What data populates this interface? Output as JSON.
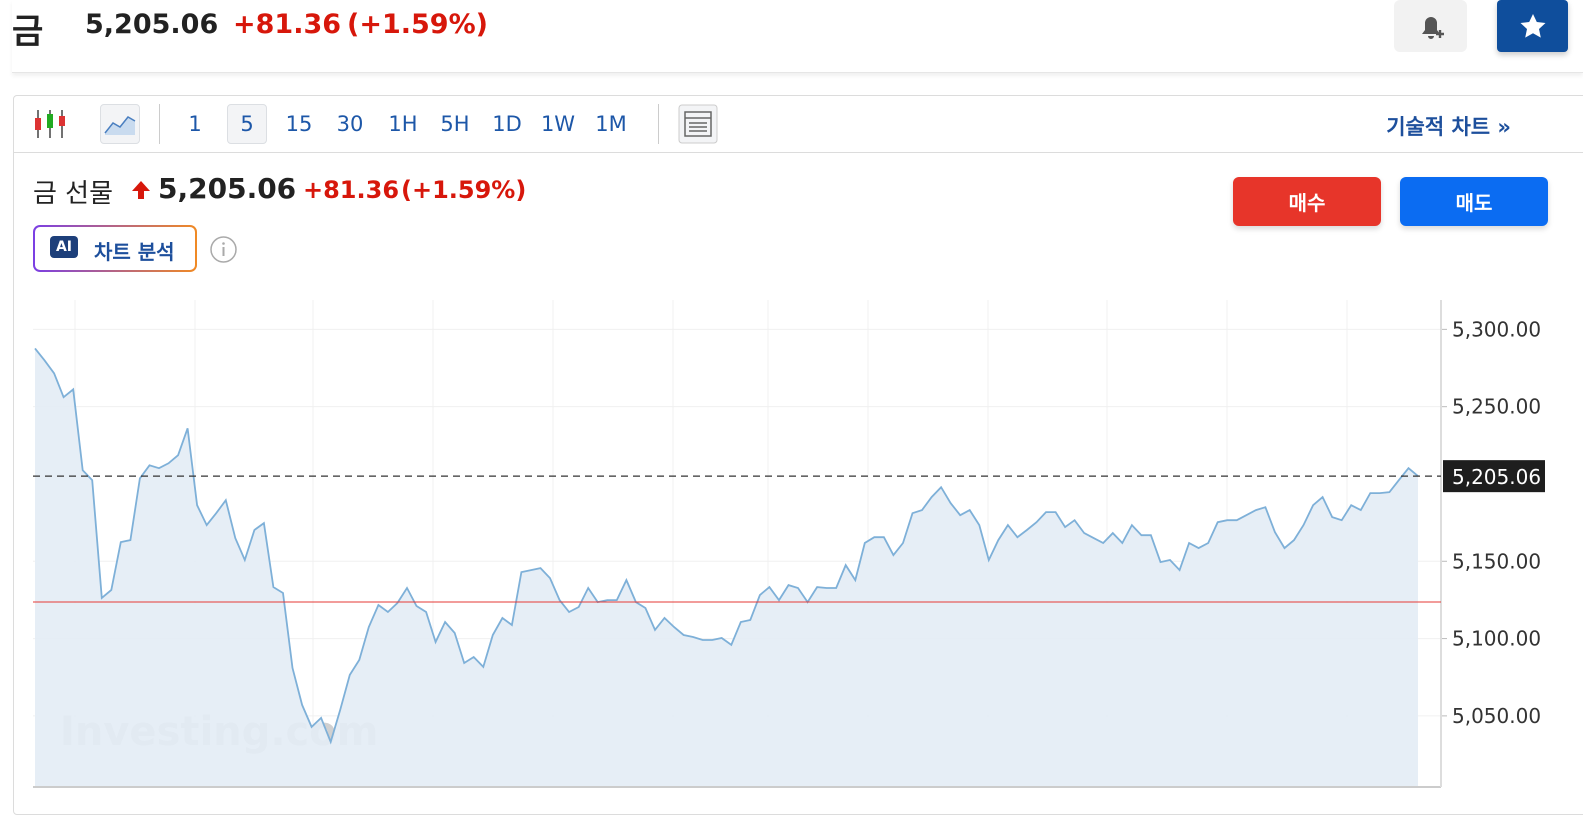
{
  "header": {
    "title": "금",
    "price": "5,205.06",
    "change": "+81.36",
    "change_pct": "(+1.59%)"
  },
  "toolbar": {
    "intervals": [
      {
        "label": "1"
      },
      {
        "label": "5",
        "active": true
      },
      {
        "label": "15"
      },
      {
        "label": "30"
      },
      {
        "label": "1H"
      },
      {
        "label": "5H"
      },
      {
        "label": "1D"
      },
      {
        "label": "1W"
      },
      {
        "label": "1M"
      }
    ],
    "technical_chart": "기술적 차트 »"
  },
  "instrument": {
    "name": "금 선물",
    "price": "5,205.06",
    "change": "+81.36",
    "change_pct": "(+1.59%)"
  },
  "ai_button": {
    "badge": "AI",
    "label": "차트 분석"
  },
  "buttons": {
    "buy": "매수",
    "sell": "매도"
  },
  "chart_data": {
    "type": "area",
    "color": "#7eb0d8",
    "fill": "#e3ecf5",
    "values": [
      5287.7,
      5280.0,
      5271.6,
      5256.1,
      5261.2,
      5208.9,
      5202.5,
      5126.3,
      5131.4,
      5162.4,
      5163.7,
      5203.7,
      5212.1,
      5210.2,
      5213.4,
      5218.6,
      5236.0,
      5186.3,
      5173.4,
      5181.1,
      5189.5,
      5165.0,
      5150.8,
      5170.2,
      5174.7,
      5133.3,
      5129.5,
      5081.0,
      5057.1,
      5042.9,
      5048.7,
      5033.2,
      5053.9,
      5076.5,
      5086.2,
      5107.5,
      5121.7,
      5117.2,
      5123.0,
      5132.7,
      5121.1,
      5117.2,
      5097.8,
      5110.7,
      5103.6,
      5084.2,
      5088.1,
      5081.7,
      5102.3,
      5113.3,
      5108.8,
      5143.0,
      5144.3,
      5145.6,
      5139.1,
      5124.9,
      5117.2,
      5120.4,
      5132.7,
      5123.6,
      5124.9,
      5124.9,
      5137.8,
      5123.6,
      5119.8,
      5105.6,
      5113.3,
      5107.5,
      5102.3,
      5101.0,
      5099.1,
      5099.1,
      5100.4,
      5095.9,
      5110.7,
      5112.0,
      5128.2,
      5133.3,
      5124.9,
      5134.6,
      5132.7,
      5123.6,
      5133.3,
      5132.7,
      5132.7,
      5147.5,
      5137.8,
      5161.8,
      5165.6,
      5165.6,
      5154.0,
      5161.8,
      5181.1,
      5183.1,
      5191.5,
      5197.9,
      5187.6,
      5179.8,
      5183.1,
      5173.4,
      5150.8,
      5163.7,
      5173.4,
      5165.6,
      5170.2,
      5175.3,
      5181.8,
      5181.8,
      5172.1,
      5176.6,
      5168.2,
      5165.0,
      5161.8,
      5168.2,
      5161.8,
      5173.4,
      5166.9,
      5166.9,
      5149.5,
      5150.8,
      5144.3,
      5161.8,
      5158.5,
      5161.8,
      5175.3,
      5176.6,
      5176.6,
      5179.8,
      5183.1,
      5185.0,
      5168.9,
      5158.5,
      5163.7,
      5173.4,
      5186.3,
      5191.5,
      5178.6,
      5176.6,
      5186.3,
      5183.1,
      5194.1,
      5194.1,
      5194.7,
      5202.5,
      5210.2,
      5205.1
    ],
    "ylim": [
      5004,
      5319
    ],
    "yticks": [
      {
        "value": 5050,
        "label": "5,050.00"
      },
      {
        "value": 5100,
        "label": "5,100.00"
      },
      {
        "value": 5150,
        "label": "5,150.00"
      },
      {
        "value": 5250,
        "label": "5,250.00"
      },
      {
        "value": 5300,
        "label": "5,300.00"
      }
    ],
    "grid": true,
    "last_price": {
      "value": 5205.06,
      "label": "5,205.06"
    },
    "reference_line": {
      "value": 5123.7,
      "color": "#e53935"
    },
    "watermark": "Investing.com"
  }
}
